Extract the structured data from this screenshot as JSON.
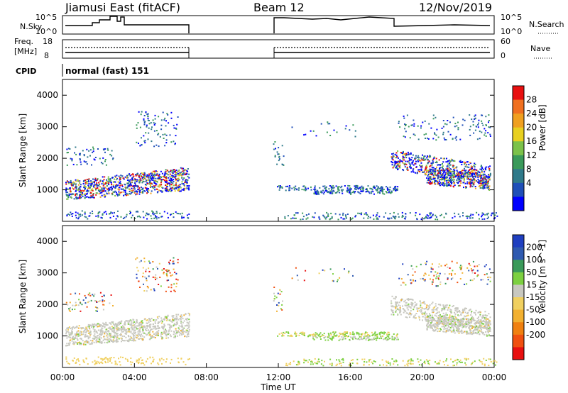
{
  "header": {
    "station": "Jiamusi East (fitACF)",
    "beam": "Beam 12",
    "date": "12/Nov/2019"
  },
  "panels": {
    "nsky": {
      "left_label": "N.Sky",
      "left_ticks": [
        "10^5",
        "10^0"
      ],
      "right_label": "N.Search",
      "right_ticks": [
        "10^5",
        "10^0"
      ]
    },
    "freq": {
      "left_label_line1": "Freq.",
      "left_label_line2": "[MHz]",
      "left_ticks": [
        "18",
        "8"
      ],
      "right_label": "Nave",
      "right_ticks": [
        "60",
        "0"
      ]
    },
    "cpid": {
      "label": "CPID",
      "mode": "normal (fast) 151"
    }
  },
  "colors": {
    "power_scale": [
      "#0000ff",
      "#1f4fb8",
      "#2f7a8a",
      "#3a9a5a",
      "#7cc24a",
      "#e8d020",
      "#f0a020",
      "#f07020",
      "#e81010"
    ],
    "velocity_scale": [
      "#e81010",
      "#f05010",
      "#f08010",
      "#f2b030",
      "#f0d060",
      "#c8c8c0",
      "#7cd040",
      "#3a9a5a",
      "#2f5ab0",
      "#1f3fc0"
    ]
  },
  "chart_data": [
    {
      "type": "heatmap",
      "name": "power",
      "ylabel": "Slant Range [km]",
      "yticks": [
        "1000",
        "2000",
        "3000",
        "4000"
      ],
      "ylim": [
        0,
        4500
      ],
      "colorbar_label": "Power [dB]",
      "colorbar_ticks": [
        "4",
        "8",
        "12",
        "16",
        "20",
        "24",
        "28"
      ]
    },
    {
      "type": "heatmap",
      "name": "velocity",
      "ylabel": "Slant Range [km]",
      "yticks": [
        "1000",
        "2000",
        "3000",
        "4000"
      ],
      "ylim": [
        0,
        4500
      ],
      "colorbar_label": "Velocity [m s^-1]",
      "colorbar_ticks": [
        "200",
        "100",
        "50",
        "15",
        "-15",
        "-50",
        "-100",
        "-200"
      ]
    }
  ],
  "xaxis": {
    "label": "Time UT",
    "ticks": [
      "00:00",
      "04:00",
      "08:00",
      "12:00",
      "16:00",
      "20:00",
      "00:00"
    ]
  }
}
